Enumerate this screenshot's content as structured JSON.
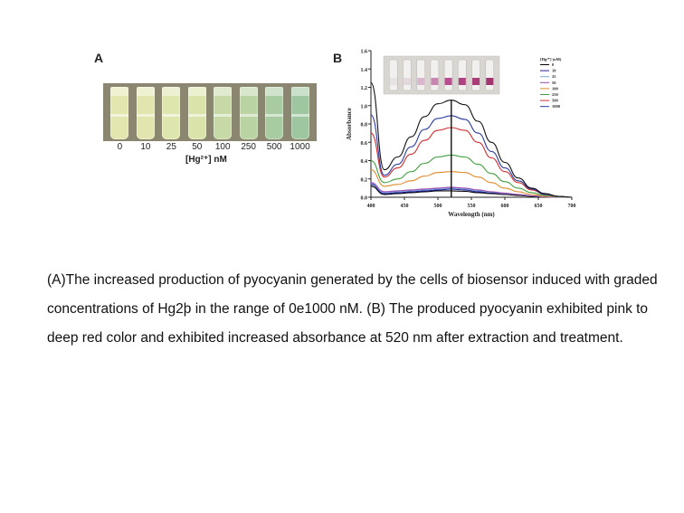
{
  "panel_a": {
    "letter": "A",
    "vial_labels": [
      "0",
      "10",
      "25",
      "50",
      "100",
      "250",
      "500",
      "1000"
    ],
    "vial_colors": [
      "#e4e6b0",
      "#e2e6ae",
      "#dfe6ad",
      "#dae3aa",
      "#c6d9a6",
      "#b9d3a3",
      "#a9cba1",
      "#9ec69f"
    ],
    "axis_label": "[Hg²⁺] nM"
  },
  "chart_data": {
    "type": "line",
    "panel_letter": "B",
    "xlabel": "Wavelength (nm)",
    "ylabel": "Absorbance",
    "xlim": [
      400,
      700
    ],
    "ylim": [
      0.0,
      1.6
    ],
    "xticks": [
      400,
      450,
      500,
      550,
      600,
      650,
      700
    ],
    "yticks": [
      0.0,
      0.2,
      0.4,
      0.6,
      0.8,
      1.0,
      1.2,
      1.4,
      1.6
    ],
    "xtick_labels": [
      "400",
      "450",
      "500",
      "550",
      "600",
      "650",
      "700"
    ],
    "ytick_labels": [
      "0.0",
      "0.2",
      "0.4",
      "0.6",
      "0.8",
      "1.0",
      "1.2",
      "1.4",
      "1.6"
    ],
    "peak_marker_x": 520,
    "legend_title": "[Hg²⁺] (nM)",
    "legend_position": "top-right",
    "x": [
      400,
      420,
      440,
      460,
      480,
      500,
      520,
      540,
      560,
      580,
      600,
      620,
      640,
      660,
      680,
      700
    ],
    "series": [
      {
        "name": "0",
        "color": "#000000",
        "values": [
          0.12,
          0.03,
          0.04,
          0.05,
          0.06,
          0.07,
          0.07,
          0.065,
          0.05,
          0.04,
          0.03,
          0.02,
          0.01,
          0.005,
          0.0,
          0.0
        ]
      },
      {
        "name": "10",
        "color": "#1f1f9f",
        "values": [
          0.14,
          0.04,
          0.05,
          0.06,
          0.07,
          0.08,
          0.09,
          0.08,
          0.06,
          0.05,
          0.04,
          0.03,
          0.015,
          0.005,
          0.0,
          0.0
        ]
      },
      {
        "name": "25",
        "color": "#7fa7d9",
        "values": [
          0.15,
          0.05,
          0.06,
          0.07,
          0.08,
          0.09,
          0.1,
          0.09,
          0.07,
          0.055,
          0.04,
          0.03,
          0.015,
          0.005,
          0.0,
          0.0
        ]
      },
      {
        "name": "50",
        "color": "#9a4ab0",
        "values": [
          0.16,
          0.06,
          0.07,
          0.08,
          0.09,
          0.1,
          0.11,
          0.1,
          0.08,
          0.06,
          0.045,
          0.03,
          0.015,
          0.005,
          0.0,
          0.0
        ]
      },
      {
        "name": "100",
        "color": "#e08a2c",
        "values": [
          0.3,
          0.12,
          0.14,
          0.18,
          0.23,
          0.27,
          0.28,
          0.27,
          0.22,
          0.16,
          0.1,
          0.06,
          0.03,
          0.01,
          0.005,
          0.0
        ]
      },
      {
        "name": "250",
        "color": "#3f9f3f",
        "values": [
          0.4,
          0.16,
          0.2,
          0.28,
          0.37,
          0.44,
          0.46,
          0.44,
          0.36,
          0.26,
          0.17,
          0.1,
          0.05,
          0.02,
          0.005,
          0.0
        ]
      },
      {
        "name": "500",
        "color": "#d03030",
        "values": [
          0.7,
          0.22,
          0.32,
          0.47,
          0.62,
          0.73,
          0.76,
          0.73,
          0.6,
          0.43,
          0.28,
          0.16,
          0.08,
          0.03,
          0.01,
          0.0
        ]
      },
      {
        "name": "1000",
        "color": "#2a3a9f",
        "values": [
          0.9,
          0.24,
          0.36,
          0.55,
          0.74,
          0.86,
          0.89,
          0.85,
          0.7,
          0.5,
          0.32,
          0.18,
          0.09,
          0.03,
          0.01,
          0.0
        ]
      },
      {
        "name": "",
        "color": "#111111",
        "values": [
          1.25,
          0.3,
          0.44,
          0.66,
          0.88,
          1.02,
          1.06,
          1.01,
          0.83,
          0.6,
          0.38,
          0.21,
          0.1,
          0.04,
          0.01,
          0.0
        ]
      }
    ],
    "inset_vial_colors": [
      "#e6e2e4",
      "#e2d8de",
      "#d9b7cc",
      "#c987b0",
      "#b8508f",
      "#b0437f",
      "#a83d78",
      "#a23570"
    ]
  },
  "caption": "(A)The increased production of pyocyanin generated by the cells of biosensor induced with graded concentrations of Hg2þ in the range of 0e1000 nM. (B) The produced pyocyanin exhibited pink to deep red color and exhibited increased absorbance at 520 nm after extraction and treatment."
}
